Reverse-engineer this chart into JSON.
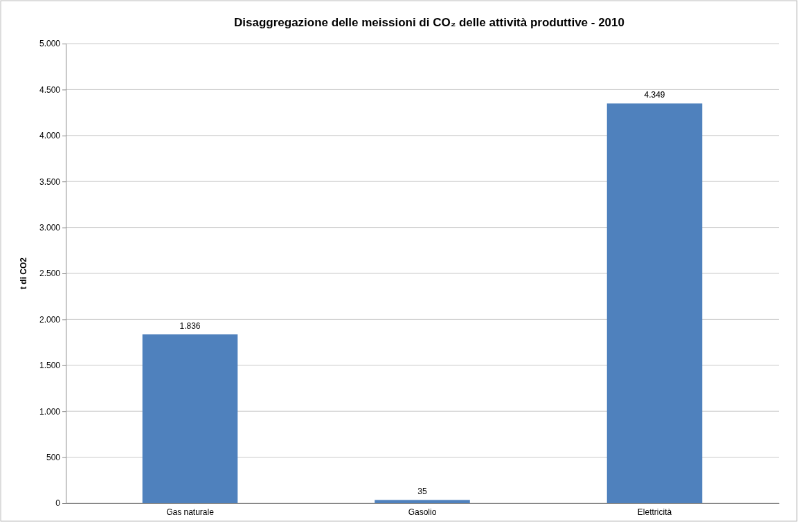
{
  "chart_data": {
    "type": "bar",
    "title": "Disaggregazione delle meissioni di CO₂ delle attività produttive - 2010",
    "ylabel": "t di CO2",
    "categories": [
      "Gas naturale",
      "Gasolio",
      "Elettricità"
    ],
    "values": [
      1836,
      35,
      4349
    ],
    "color": "#4f81bd",
    "value_labels": [
      "1.836",
      "35",
      "4.349"
    ],
    "ylim": [
      0,
      5000
    ],
    "yticks": [
      {
        "value": 0,
        "label": "0"
      },
      {
        "value": 500,
        "label": "500"
      },
      {
        "value": 1000,
        "label": "1.000"
      },
      {
        "value": 1500,
        "label": "1.500"
      },
      {
        "value": 2000,
        "label": "2.000"
      },
      {
        "value": 2500,
        "label": "2.500"
      },
      {
        "value": 3000,
        "label": "3.000"
      },
      {
        "value": 3500,
        "label": "3.500"
      },
      {
        "value": 4000,
        "label": "4.000"
      },
      {
        "value": 4500,
        "label": "4.500"
      },
      {
        "value": 5000,
        "label": "5.000"
      }
    ],
    "grid": "y"
  }
}
